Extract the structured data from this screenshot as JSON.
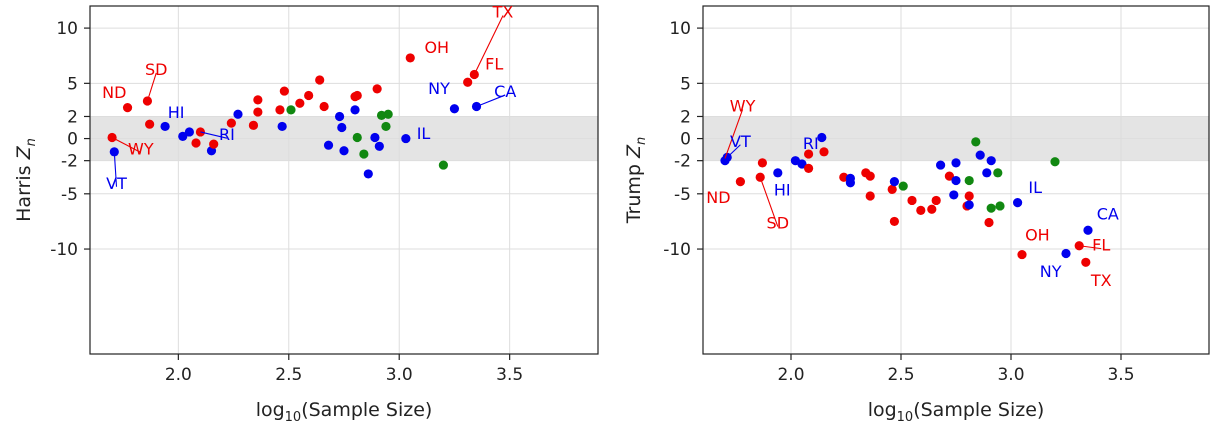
{
  "colors": {
    "red": "#ee0000",
    "blue": "#0000ee",
    "green": "#118811",
    "band": "#e4e4e4",
    "grid": "#dddddd"
  },
  "chart_data": [
    {
      "type": "scatter",
      "xlabel": "log10(Sample Size)",
      "ylabel": "Harris Zn",
      "xlim": [
        1.6,
        3.9
      ],
      "ylim": [
        -19.5,
        12
      ],
      "xticks": [
        "2.0",
        "2.5",
        "3.0",
        "3.5"
      ],
      "yticks": [
        "10",
        "5",
        "2",
        "0",
        "-2",
        "-5",
        "-10"
      ],
      "shaded_band": [
        -2,
        2
      ],
      "grid": true,
      "points": [
        {
          "x": 1.7,
          "y": 0.1,
          "c": "red"
        },
        {
          "x": 1.71,
          "y": -1.2,
          "c": "blue"
        },
        {
          "x": 1.77,
          "y": 2.8,
          "c": "red"
        },
        {
          "x": 1.86,
          "y": 3.4,
          "c": "red"
        },
        {
          "x": 1.87,
          "y": 1.3,
          "c": "red"
        },
        {
          "x": 1.94,
          "y": 1.1,
          "c": "blue"
        },
        {
          "x": 2.02,
          "y": 0.2,
          "c": "blue"
        },
        {
          "x": 2.05,
          "y": 0.6,
          "c": "blue"
        },
        {
          "x": 2.08,
          "y": -0.4,
          "c": "red"
        },
        {
          "x": 2.1,
          "y": 0.6,
          "c": "red"
        },
        {
          "x": 2.15,
          "y": -1.1,
          "c": "blue"
        },
        {
          "x": 2.16,
          "y": -0.5,
          "c": "red"
        },
        {
          "x": 2.24,
          "y": 1.4,
          "c": "red"
        },
        {
          "x": 2.27,
          "y": 2.2,
          "c": "blue"
        },
        {
          "x": 2.34,
          "y": 1.2,
          "c": "red"
        },
        {
          "x": 2.36,
          "y": 2.4,
          "c": "red"
        },
        {
          "x": 2.36,
          "y": 3.5,
          "c": "red"
        },
        {
          "x": 2.46,
          "y": 2.6,
          "c": "red"
        },
        {
          "x": 2.47,
          "y": 1.1,
          "c": "blue"
        },
        {
          "x": 2.48,
          "y": 4.3,
          "c": "red"
        },
        {
          "x": 2.51,
          "y": 2.6,
          "c": "green"
        },
        {
          "x": 2.55,
          "y": 3.2,
          "c": "red"
        },
        {
          "x": 2.59,
          "y": 3.9,
          "c": "red"
        },
        {
          "x": 2.64,
          "y": 5.3,
          "c": "red"
        },
        {
          "x": 2.66,
          "y": 2.9,
          "c": "red"
        },
        {
          "x": 2.68,
          "y": -0.6,
          "c": "blue"
        },
        {
          "x": 2.73,
          "y": 2.0,
          "c": "blue"
        },
        {
          "x": 2.74,
          "y": 1.0,
          "c": "blue"
        },
        {
          "x": 2.75,
          "y": -1.1,
          "c": "blue"
        },
        {
          "x": 2.8,
          "y": 3.8,
          "c": "red"
        },
        {
          "x": 2.8,
          "y": 2.6,
          "c": "blue"
        },
        {
          "x": 2.81,
          "y": 3.9,
          "c": "red"
        },
        {
          "x": 2.81,
          "y": 0.1,
          "c": "green"
        },
        {
          "x": 2.84,
          "y": -1.4,
          "c": "green"
        },
        {
          "x": 2.86,
          "y": -3.2,
          "c": "blue"
        },
        {
          "x": 2.89,
          "y": 0.1,
          "c": "blue"
        },
        {
          "x": 2.9,
          "y": 4.5,
          "c": "red"
        },
        {
          "x": 2.91,
          "y": -0.7,
          "c": "blue"
        },
        {
          "x": 2.92,
          "y": 2.1,
          "c": "green"
        },
        {
          "x": 2.94,
          "y": 1.1,
          "c": "green"
        },
        {
          "x": 2.95,
          "y": 2.2,
          "c": "green"
        },
        {
          "x": 3.03,
          "y": 0.0,
          "c": "blue"
        },
        {
          "x": 3.05,
          "y": 7.3,
          "c": "red"
        },
        {
          "x": 3.2,
          "y": -2.4,
          "c": "green"
        },
        {
          "x": 3.25,
          "y": 2.7,
          "c": "blue"
        },
        {
          "x": 3.31,
          "y": 5.1,
          "c": "red"
        },
        {
          "x": 3.34,
          "y": 5.8,
          "c": "red"
        },
        {
          "x": 3.35,
          "y": 2.9,
          "c": "blue"
        }
      ],
      "labels": [
        {
          "text": "ND",
          "c": "red",
          "lx": 1.71,
          "ly": 4.2,
          "px": null,
          "py": null
        },
        {
          "text": "SD",
          "c": "red",
          "lx": 1.9,
          "ly": 6.3,
          "px": 1.86,
          "py": 3.4
        },
        {
          "text": "HI",
          "c": "blue",
          "lx": 1.99,
          "ly": 2.4,
          "px": null,
          "py": null
        },
        {
          "text": "WY",
          "c": "red",
          "lx": 1.83,
          "ly": -0.9,
          "px": 1.7,
          "py": 0.1
        },
        {
          "text": "VT",
          "c": "blue",
          "lx": 1.72,
          "ly": -4.0,
          "px": 1.71,
          "py": -1.2
        },
        {
          "text": "RI",
          "c": "blue",
          "lx": 2.22,
          "ly": 0.4,
          "px": 2.1,
          "py": 0.6
        },
        {
          "text": "OH",
          "c": "red",
          "lx": 3.17,
          "ly": 8.3,
          "px": null,
          "py": null
        },
        {
          "text": "TX",
          "c": "red",
          "lx": 3.47,
          "ly": 11.5,
          "px": 3.34,
          "py": 5.8
        },
        {
          "text": "FL",
          "c": "red",
          "lx": 3.43,
          "ly": 6.8,
          "px": null,
          "py": null
        },
        {
          "text": "NY",
          "c": "blue",
          "lx": 3.18,
          "ly": 4.6,
          "px": null,
          "py": null
        },
        {
          "text": "CA",
          "c": "blue",
          "lx": 3.48,
          "ly": 4.3,
          "px": 3.35,
          "py": 2.9
        },
        {
          "text": "IL",
          "c": "blue",
          "lx": 3.11,
          "ly": 0.5,
          "px": null,
          "py": null
        }
      ]
    },
    {
      "type": "scatter",
      "xlabel": "log10(Sample Size)",
      "ylabel": "Trump Zn",
      "xlim": [
        1.6,
        3.9
      ],
      "ylim": [
        -19.5,
        12
      ],
      "xticks": [
        "2.0",
        "2.5",
        "3.0",
        "3.5"
      ],
      "yticks": [
        "10",
        "5",
        "2",
        "0",
        "-2",
        "-5",
        "-10"
      ],
      "shaded_band": [
        -2,
        2
      ],
      "grid": true,
      "points": [
        {
          "x": 1.7,
          "y": -2.0,
          "c": "blue"
        },
        {
          "x": 1.71,
          "y": -1.7,
          "c": "blue"
        },
        {
          "x": 1.77,
          "y": -3.9,
          "c": "red"
        },
        {
          "x": 1.86,
          "y": -3.5,
          "c": "red"
        },
        {
          "x": 1.87,
          "y": -2.2,
          "c": "red"
        },
        {
          "x": 1.94,
          "y": -3.1,
          "c": "blue"
        },
        {
          "x": 2.02,
          "y": -2.0,
          "c": "blue"
        },
        {
          "x": 2.05,
          "y": -2.3,
          "c": "blue"
        },
        {
          "x": 2.08,
          "y": -2.7,
          "c": "red"
        },
        {
          "x": 2.08,
          "y": -1.4,
          "c": "red"
        },
        {
          "x": 2.14,
          "y": 0.1,
          "c": "blue"
        },
        {
          "x": 2.15,
          "y": -1.2,
          "c": "red"
        },
        {
          "x": 2.24,
          "y": -3.5,
          "c": "red"
        },
        {
          "x": 2.27,
          "y": -3.6,
          "c": "blue"
        },
        {
          "x": 2.27,
          "y": -4.0,
          "c": "blue"
        },
        {
          "x": 2.34,
          "y": -3.1,
          "c": "red"
        },
        {
          "x": 2.36,
          "y": -5.2,
          "c": "red"
        },
        {
          "x": 2.36,
          "y": -3.4,
          "c": "red"
        },
        {
          "x": 2.46,
          "y": -4.6,
          "c": "red"
        },
        {
          "x": 2.47,
          "y": -3.9,
          "c": "blue"
        },
        {
          "x": 2.47,
          "y": -7.5,
          "c": "red"
        },
        {
          "x": 2.51,
          "y": -4.3,
          "c": "green"
        },
        {
          "x": 2.55,
          "y": -5.6,
          "c": "red"
        },
        {
          "x": 2.59,
          "y": -6.5,
          "c": "red"
        },
        {
          "x": 2.64,
          "y": -6.4,
          "c": "red"
        },
        {
          "x": 2.66,
          "y": -5.6,
          "c": "red"
        },
        {
          "x": 2.68,
          "y": -2.4,
          "c": "blue"
        },
        {
          "x": 2.72,
          "y": -3.4,
          "c": "red"
        },
        {
          "x": 2.74,
          "y": -5.1,
          "c": "blue"
        },
        {
          "x": 2.75,
          "y": -3.8,
          "c": "blue"
        },
        {
          "x": 2.75,
          "y": -2.2,
          "c": "blue"
        },
        {
          "x": 2.8,
          "y": -6.1,
          "c": "red"
        },
        {
          "x": 2.81,
          "y": -6.0,
          "c": "blue"
        },
        {
          "x": 2.81,
          "y": -5.2,
          "c": "red"
        },
        {
          "x": 2.81,
          "y": -3.8,
          "c": "green"
        },
        {
          "x": 2.84,
          "y": -0.3,
          "c": "green"
        },
        {
          "x": 2.86,
          "y": -1.5,
          "c": "blue"
        },
        {
          "x": 2.89,
          "y": -3.1,
          "c": "blue"
        },
        {
          "x": 2.9,
          "y": -7.6,
          "c": "red"
        },
        {
          "x": 2.91,
          "y": -2.0,
          "c": "blue"
        },
        {
          "x": 2.91,
          "y": -6.3,
          "c": "green"
        },
        {
          "x": 2.94,
          "y": -3.1,
          "c": "green"
        },
        {
          "x": 2.95,
          "y": -6.1,
          "c": "green"
        },
        {
          "x": 3.03,
          "y": -5.8,
          "c": "blue"
        },
        {
          "x": 3.05,
          "y": -10.5,
          "c": "red"
        },
        {
          "x": 3.2,
          "y": -2.1,
          "c": "green"
        },
        {
          "x": 3.25,
          "y": -10.4,
          "c": "blue"
        },
        {
          "x": 3.31,
          "y": -9.7,
          "c": "red"
        },
        {
          "x": 3.34,
          "y": -11.2,
          "c": "red"
        },
        {
          "x": 3.35,
          "y": -8.3,
          "c": "blue"
        }
      ],
      "labels": [
        {
          "text": "WY",
          "c": "red",
          "lx": 1.78,
          "ly": 3.0,
          "px": 1.7,
          "py": -1.8
        },
        {
          "text": "VT",
          "c": "blue",
          "lx": 1.77,
          "ly": -0.2,
          "px": 1.71,
          "py": -1.7
        },
        {
          "text": "RI",
          "c": "blue",
          "lx": 2.09,
          "ly": -0.4,
          "px": null,
          "py": null
        },
        {
          "text": "ND",
          "c": "red",
          "lx": 1.67,
          "ly": -5.3,
          "px": null,
          "py": null
        },
        {
          "text": "HI",
          "c": "blue",
          "lx": 1.96,
          "ly": -4.6,
          "px": null,
          "py": null
        },
        {
          "text": "SD",
          "c": "red",
          "lx": 1.94,
          "ly": -7.6,
          "px": 1.86,
          "py": -3.5
        },
        {
          "text": "IL",
          "c": "blue",
          "lx": 3.11,
          "ly": -4.4,
          "px": null,
          "py": null
        },
        {
          "text": "OH",
          "c": "red",
          "lx": 3.12,
          "ly": -8.7,
          "px": null,
          "py": null
        },
        {
          "text": "CA",
          "c": "blue",
          "lx": 3.44,
          "ly": -6.8,
          "px": null,
          "py": null
        },
        {
          "text": "FL",
          "c": "red",
          "lx": 3.41,
          "ly": -9.6,
          "px": 3.31,
          "py": -9.7
        },
        {
          "text": "NY",
          "c": "blue",
          "lx": 3.18,
          "ly": -12.0,
          "px": null,
          "py": null
        },
        {
          "text": "TX",
          "c": "red",
          "lx": 3.41,
          "ly": -12.8,
          "px": null,
          "py": null
        }
      ]
    }
  ]
}
